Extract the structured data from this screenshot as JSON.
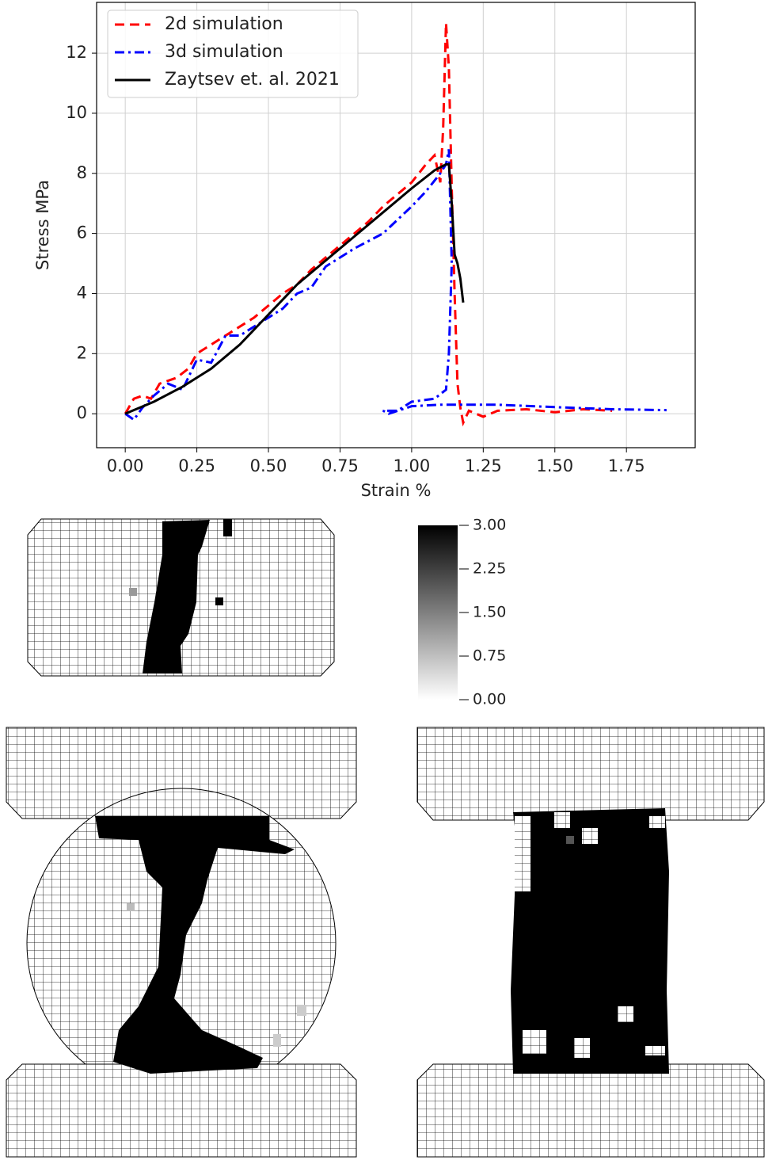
{
  "chart_data": {
    "type": "line",
    "xlabel": "Strain %",
    "ylabel": "Stress MPa",
    "xlim": [
      -0.1,
      1.99
    ],
    "ylim": [
      -1.13,
      13.69
    ],
    "xticks": [
      {
        "value": 0,
        "label": "0.00"
      },
      {
        "value": 0.25,
        "label": "0.25"
      },
      {
        "value": 0.5,
        "label": "0.50"
      },
      {
        "value": 0.75,
        "label": "0.75"
      },
      {
        "value": 1,
        "label": "1.00"
      },
      {
        "value": 1.25,
        "label": "1.25"
      },
      {
        "value": 1.5,
        "label": "1.50"
      },
      {
        "value": 1.75,
        "label": "1.75"
      }
    ],
    "yticks": [
      0,
      2,
      4,
      6,
      8,
      10,
      12
    ],
    "grid": true,
    "legend": "upper left",
    "series": [
      {
        "name": "2d simulation",
        "color": "#ff0000",
        "linestyle": "dashed",
        "x": [
          0,
          0.03,
          0.06,
          0.09,
          0.12,
          0.15,
          0.18,
          0.22,
          0.25,
          0.3,
          0.35,
          0.4,
          0.45,
          0.5,
          0.55,
          0.6,
          0.65,
          0.7,
          0.75,
          0.8,
          0.85,
          0.9,
          0.95,
          1.0,
          1.05,
          1.08,
          1.1,
          1.11,
          1.12,
          1.13,
          1.14,
          1.15,
          1.16,
          1.17,
          1.18,
          1.2,
          1.25,
          1.3,
          1.4,
          1.5,
          1.6,
          1.7
        ],
        "values": [
          0,
          0.5,
          0.6,
          0.5,
          1.0,
          1.1,
          1.2,
          1.5,
          2.0,
          2.3,
          2.6,
          2.9,
          3.2,
          3.6,
          4.0,
          4.3,
          4.8,
          5.2,
          5.6,
          6.0,
          6.4,
          6.9,
          7.3,
          7.7,
          8.3,
          8.6,
          7.7,
          9.5,
          13.0,
          11.5,
          7.5,
          4.0,
          1.0,
          0.2,
          -0.3,
          0.1,
          -0.1,
          0.1,
          0.15,
          0.05,
          0.15,
          0.1
        ]
      },
      {
        "name": "3d simulation",
        "color": "#0000ff",
        "linestyle": "dashdot",
        "x": [
          0,
          0.03,
          0.06,
          0.1,
          0.15,
          0.2,
          0.25,
          0.3,
          0.35,
          0.4,
          0.5,
          0.55,
          0.6,
          0.65,
          0.7,
          0.8,
          0.9,
          1.0,
          1.05,
          1.1,
          1.12,
          1.13,
          1.14,
          1.13,
          1.12,
          1.08,
          1.0,
          0.95,
          0.9,
          0.92,
          1.0,
          1.1,
          1.3,
          1.5,
          1.7,
          1.89
        ],
        "values": [
          0,
          -0.2,
          0.2,
          0.6,
          1.0,
          0.8,
          1.8,
          1.7,
          2.6,
          2.6,
          3.2,
          3.5,
          4.0,
          4.2,
          4.9,
          5.5,
          6.0,
          6.9,
          7.4,
          8.0,
          8.3,
          8.8,
          5.0,
          2.0,
          0.8,
          0.5,
          0.4,
          0.1,
          0.1,
          0.0,
          0.25,
          0.3,
          0.3,
          0.22,
          0.15,
          0.12
        ]
      },
      {
        "name": "Zaytsev et. al. 2021",
        "color": "#000000",
        "linestyle": "solid",
        "x": [
          0,
          0.1,
          0.2,
          0.3,
          0.4,
          0.5,
          0.6,
          0.7,
          0.8,
          0.9,
          1.0,
          1.08,
          1.12,
          1.13,
          1.14,
          1.15,
          1.16,
          1.17,
          1.18
        ],
        "values": [
          0,
          0.4,
          0.9,
          1.5,
          2.3,
          3.3,
          4.3,
          5.1,
          5.9,
          6.7,
          7.5,
          8.1,
          8.3,
          8.3,
          7.0,
          5.3,
          5.0,
          4.5,
          3.7
        ]
      }
    ]
  },
  "colorbar": {
    "lim": [
      0,
      3
    ],
    "ticks": [
      {
        "value": 3,
        "label": "3.00"
      },
      {
        "value": 2.25,
        "label": "2.25"
      },
      {
        "value": 1.5,
        "label": "1.50"
      },
      {
        "value": 0.75,
        "label": "0.75"
      },
      {
        "value": 0,
        "label": "0.00"
      }
    ]
  }
}
